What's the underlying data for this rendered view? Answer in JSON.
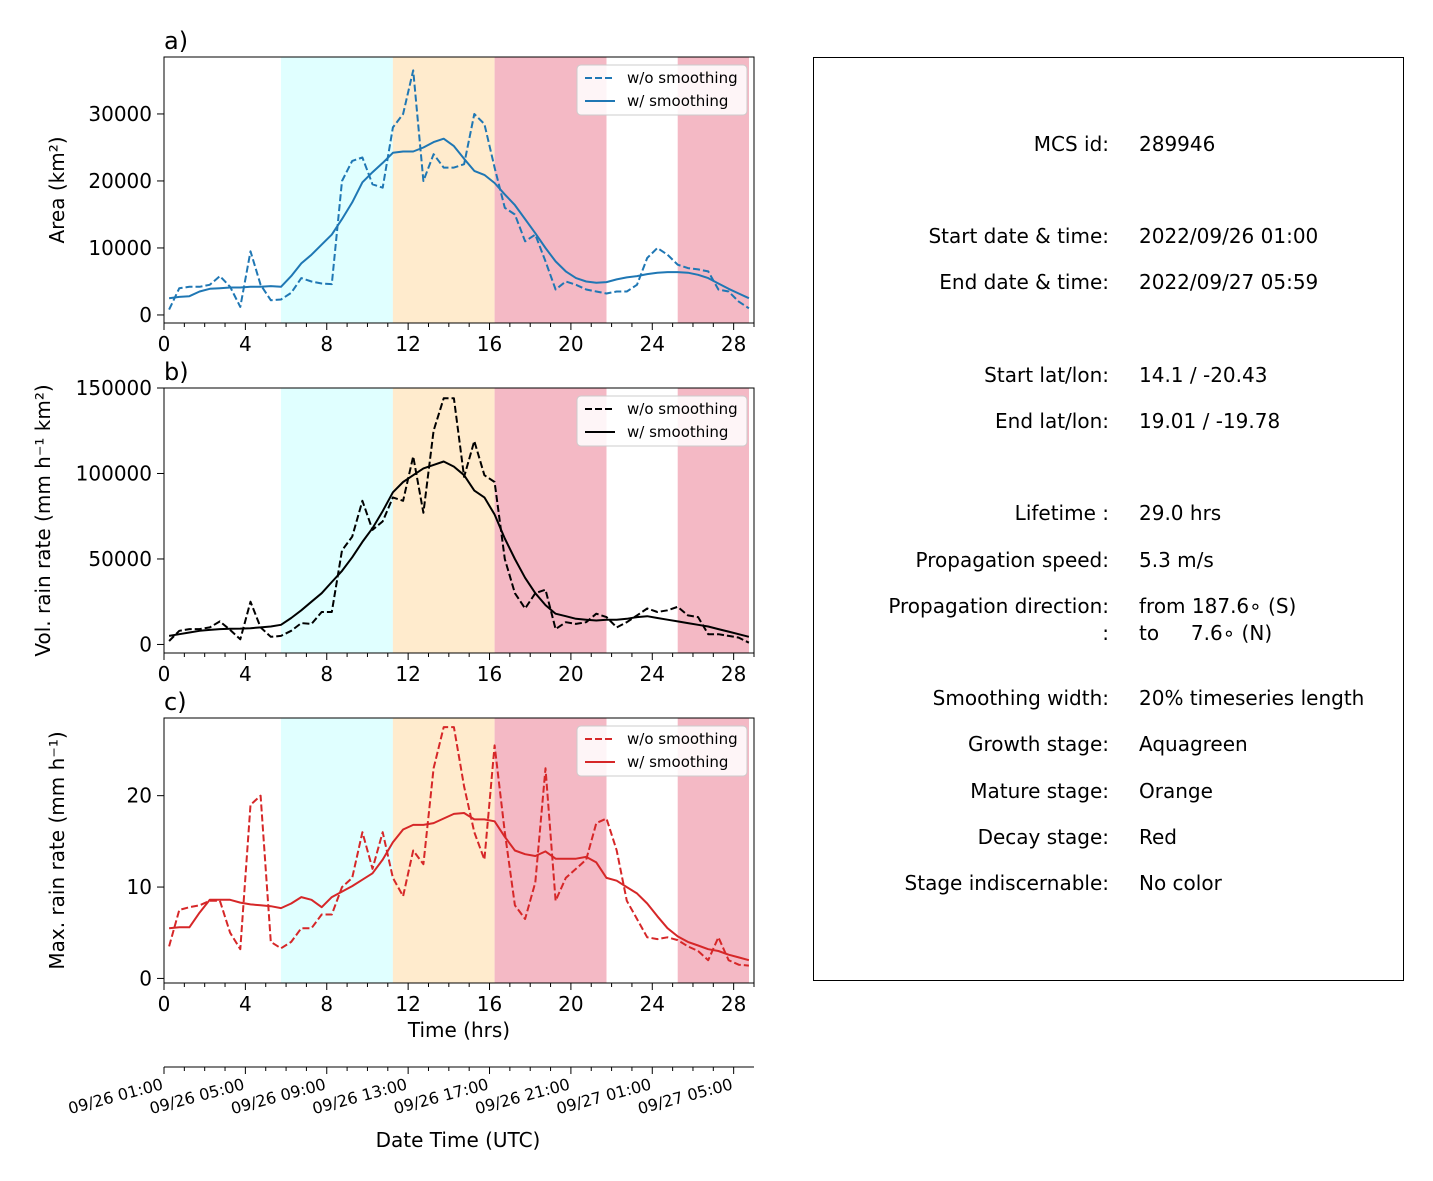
{
  "figure": {
    "xlabel": "Time (hrs)",
    "date_axis_label": "Date Time (UTC)",
    "date_ticks": [
      "09/26 01:00",
      "09/26 05:00",
      "09/26 09:00",
      "09/26 13:00",
      "09/26 17:00",
      "09/26 21:00",
      "09/27 01:00",
      "09/27 05:00"
    ]
  },
  "stage_bands": [
    {
      "stage": "Growth",
      "from": 5.75,
      "to": 11.25,
      "color": "#e0ffff"
    },
    {
      "stage": "Mature",
      "from": 11.25,
      "to": 16.25,
      "color": "#ffebcd"
    },
    {
      "stage": "Decay",
      "from": 16.25,
      "to": 21.75,
      "color": "#f4b9c5"
    },
    {
      "stage": "Decay",
      "from": 25.25,
      "to": 29,
      "color": "#f4b9c5"
    }
  ],
  "chart_data": [
    {
      "type": "line",
      "panel_label": "a)",
      "ylabel": "Area  (km²)",
      "xlim": [
        0,
        29
      ],
      "ylim": [
        -1200,
        38500
      ],
      "xticks": [
        0,
        4,
        8,
        12,
        16,
        20,
        24,
        28
      ],
      "yticks": [
        0,
        10000,
        20000,
        30000
      ],
      "legend": {
        "position": "top-right",
        "entries": [
          "w/o smoothing",
          "w/ smoothing"
        ]
      },
      "color": "#1f77b4",
      "series": [
        {
          "name": "w/o smoothing",
          "style": "dashed",
          "x": [
            0.25,
            0.75,
            1.25,
            1.75,
            2.25,
            2.75,
            3.25,
            3.75,
            4.25,
            4.75,
            5.25,
            5.75,
            6.25,
            6.75,
            7.25,
            7.75,
            8.25,
            8.75,
            9.25,
            9.75,
            10.25,
            10.75,
            11.25,
            11.75,
            12.25,
            12.75,
            13.25,
            13.75,
            14.25,
            14.75,
            15.25,
            15.75,
            16.25,
            16.75,
            17.25,
            17.75,
            18.25,
            18.75,
            19.25,
            19.75,
            20.25,
            20.75,
            21.25,
            21.75,
            22.25,
            22.75,
            23.25,
            23.75,
            24.25,
            24.75,
            25.25,
            25.75,
            26.25,
            26.75,
            27.25,
            27.75,
            28.25,
            28.75
          ],
          "y": [
            800,
            4000,
            4200,
            4200,
            4500,
            5800,
            4200,
            1200,
            9500,
            4500,
            2200,
            2300,
            3300,
            5500,
            5000,
            4700,
            4600,
            20000,
            23000,
            23500,
            19500,
            19000,
            28000,
            30000,
            36500,
            20000,
            24000,
            22000,
            22000,
            22500,
            30000,
            28500,
            22000,
            16000,
            15000,
            11000,
            12000,
            8000,
            3800,
            5000,
            4500,
            3800,
            3500,
            3200,
            3500,
            3500,
            4500,
            8500,
            10000,
            9000,
            7500,
            7000,
            6800,
            6500,
            3800,
            3500,
            2000,
            1000
          ]
        },
        {
          "name": "w/ smoothing",
          "style": "solid",
          "x": [
            0.25,
            0.75,
            1.25,
            1.75,
            2.25,
            2.75,
            3.25,
            3.75,
            4.25,
            4.75,
            5.25,
            5.75,
            6.25,
            6.75,
            7.25,
            7.75,
            8.25,
            8.75,
            9.25,
            9.75,
            10.25,
            10.75,
            11.25,
            11.75,
            12.25,
            12.75,
            13.25,
            13.75,
            14.25,
            14.75,
            15.25,
            15.75,
            16.25,
            16.75,
            17.25,
            17.75,
            18.25,
            18.75,
            19.25,
            19.75,
            20.25,
            20.75,
            21.25,
            21.75,
            22.25,
            22.75,
            23.25,
            23.75,
            24.25,
            24.75,
            25.25,
            25.75,
            26.25,
            26.75,
            27.25,
            27.75,
            28.25,
            28.75
          ],
          "y": [
            2500,
            2700,
            2800,
            3500,
            3900,
            4000,
            4100,
            4100,
            4200,
            4200,
            4300,
            4200,
            5800,
            7700,
            9000,
            10500,
            12000,
            14300,
            16800,
            19800,
            21300,
            22700,
            24200,
            24400,
            24400,
            25000,
            25800,
            26300,
            25200,
            23300,
            21500,
            20900,
            19700,
            18000,
            16400,
            14300,
            12200,
            10000,
            8000,
            6500,
            5500,
            5000,
            4800,
            4900,
            5300,
            5600,
            5800,
            6100,
            6300,
            6400,
            6400,
            6300,
            6000,
            5500,
            4700,
            3900,
            3200,
            2500
          ]
        }
      ]
    },
    {
      "type": "line",
      "panel_label": "b)",
      "ylabel": "Vol. rain rate (mm h⁻¹ km²)",
      "xlim": [
        0,
        29
      ],
      "ylim": [
        -5000,
        150000
      ],
      "xticks": [
        0,
        4,
        8,
        12,
        16,
        20,
        24,
        28
      ],
      "yticks": [
        0,
        50000,
        100000,
        150000
      ],
      "legend": {
        "position": "top-right",
        "entries": [
          "w/o smoothing",
          "w/ smoothing"
        ]
      },
      "color": "#000000",
      "series": [
        {
          "name": "w/o smoothing",
          "style": "dashed",
          "x": [
            0.25,
            0.75,
            1.25,
            1.75,
            2.25,
            2.75,
            3.25,
            3.75,
            4.25,
            4.75,
            5.25,
            5.75,
            6.25,
            6.75,
            7.25,
            7.75,
            8.25,
            8.75,
            9.25,
            9.75,
            10.25,
            10.75,
            11.25,
            11.75,
            12.25,
            12.75,
            13.25,
            13.75,
            14.25,
            14.75,
            15.25,
            15.75,
            16.25,
            16.75,
            17.25,
            17.75,
            18.25,
            18.75,
            19.25,
            19.75,
            20.25,
            20.75,
            21.25,
            21.75,
            22.25,
            22.75,
            23.25,
            23.75,
            24.25,
            24.75,
            25.25,
            25.75,
            26.25,
            26.75,
            27.25,
            27.75,
            28.25,
            28.75
          ],
          "y": [
            2000,
            8000,
            9000,
            9000,
            10000,
            13500,
            8500,
            3000,
            25000,
            10000,
            4500,
            5000,
            8000,
            12500,
            12000,
            19000,
            19000,
            55000,
            63000,
            84000,
            67000,
            72000,
            86000,
            84000,
            110000,
            77000,
            125000,
            144000,
            144000,
            98000,
            119000,
            99000,
            95000,
            50000,
            30000,
            21000,
            30000,
            32000,
            9000,
            13000,
            12000,
            13000,
            18000,
            16000,
            10000,
            13000,
            17000,
            21000,
            19000,
            20000,
            22000,
            17000,
            16000,
            6000,
            6000,
            5000,
            4000,
            1000
          ]
        },
        {
          "name": "w/ smoothing",
          "style": "solid",
          "x": [
            0.25,
            0.75,
            1.25,
            1.75,
            2.25,
            2.75,
            3.25,
            3.75,
            4.25,
            4.75,
            5.25,
            5.75,
            6.25,
            6.75,
            7.25,
            7.75,
            8.25,
            8.75,
            9.25,
            9.75,
            10.25,
            10.75,
            11.25,
            11.75,
            12.25,
            12.75,
            13.25,
            13.75,
            14.25,
            14.75,
            15.25,
            15.75,
            16.25,
            16.75,
            17.25,
            17.75,
            18.25,
            18.75,
            19.25,
            19.75,
            20.25,
            20.75,
            21.25,
            21.75,
            22.25,
            22.75,
            23.25,
            23.75,
            24.25,
            24.75,
            25.25,
            25.75,
            26.25,
            26.75,
            27.25,
            27.75,
            28.25,
            28.75
          ],
          "y": [
            5000,
            6000,
            7000,
            8000,
            8500,
            9000,
            9200,
            9300,
            9500,
            10000,
            10500,
            11500,
            15500,
            20000,
            25000,
            30000,
            36500,
            43000,
            51000,
            60000,
            68000,
            78000,
            89000,
            95000,
            99000,
            103000,
            105000,
            107000,
            104000,
            99000,
            90000,
            86000,
            76000,
            62000,
            50000,
            39000,
            30000,
            23000,
            18000,
            16500,
            15000,
            14500,
            14000,
            14500,
            14500,
            15000,
            16000,
            16500,
            15500,
            14500,
            13500,
            12500,
            11500,
            10500,
            9000,
            7500,
            6000,
            4500
          ]
        }
      ]
    },
    {
      "type": "line",
      "panel_label": "c)",
      "ylabel": "Max. rain rate  (mm h⁻¹)",
      "xlim": [
        0,
        29
      ],
      "ylim": [
        -0.5,
        28.5
      ],
      "xticks": [
        0,
        4,
        8,
        12,
        16,
        20,
        24,
        28
      ],
      "yticks": [
        0,
        10,
        20
      ],
      "legend": {
        "position": "top-right",
        "entries": [
          "w/o smoothing",
          "w/ smoothing"
        ]
      },
      "color": "#d62728",
      "series": [
        {
          "name": "w/o smoothing",
          "style": "dashed",
          "x": [
            0.25,
            0.75,
            1.25,
            1.75,
            2.25,
            2.75,
            3.25,
            3.75,
            4.25,
            4.75,
            5.25,
            5.75,
            6.25,
            6.75,
            7.25,
            7.75,
            8.25,
            8.75,
            9.25,
            9.75,
            10.25,
            10.75,
            11.25,
            11.75,
            12.25,
            12.75,
            13.25,
            13.75,
            14.25,
            14.75,
            15.25,
            15.75,
            16.25,
            16.75,
            17.25,
            17.75,
            18.25,
            18.75,
            19.25,
            19.75,
            20.25,
            20.75,
            21.25,
            21.75,
            22.25,
            22.75,
            23.25,
            23.75,
            24.25,
            24.75,
            25.25,
            25.75,
            26.25,
            26.75,
            27.25,
            27.75,
            28.25,
            28.75
          ],
          "y": [
            3.5,
            7.5,
            7.8,
            8,
            8.5,
            8.5,
            5,
            3.2,
            19,
            20,
            4,
            3.3,
            4,
            5.5,
            5.5,
            7,
            7,
            10,
            11,
            16,
            12,
            16,
            11,
            9,
            14,
            12.5,
            23,
            27.5,
            27.5,
            21,
            16,
            13,
            25.5,
            16,
            8,
            6.5,
            10.5,
            23,
            8.5,
            11,
            12,
            13,
            17,
            17.5,
            14,
            8.5,
            6.5,
            4.5,
            4.3,
            4.5,
            4.2,
            3.5,
            3,
            2,
            4.5,
            2,
            1.5,
            1.4
          ]
        },
        {
          "name": "w/ smoothing",
          "style": "solid",
          "x": [
            0.25,
            0.75,
            1.25,
            1.75,
            2.25,
            2.75,
            3.25,
            3.75,
            4.25,
            4.75,
            5.25,
            5.75,
            6.25,
            6.75,
            7.25,
            7.75,
            8.25,
            8.75,
            9.25,
            9.75,
            10.25,
            10.75,
            11.25,
            11.75,
            12.25,
            12.75,
            13.25,
            13.75,
            14.25,
            14.75,
            15.25,
            15.75,
            16.25,
            16.75,
            17.25,
            17.75,
            18.25,
            18.75,
            19.25,
            19.75,
            20.25,
            20.75,
            21.25,
            21.75,
            22.25,
            22.75,
            23.25,
            23.75,
            24.25,
            24.75,
            25.25,
            25.75,
            26.25,
            26.75,
            27.25,
            27.75,
            28.25,
            28.75
          ],
          "y": [
            5.5,
            5.6,
            5.6,
            7.2,
            8.6,
            8.6,
            8.6,
            8.3,
            8.1,
            8,
            7.9,
            7.7,
            8.2,
            8.9,
            8.6,
            7.8,
            8.9,
            9.5,
            10.1,
            10.8,
            11.5,
            13,
            14.9,
            16.3,
            16.8,
            16.8,
            17,
            17.5,
            18,
            18.1,
            17.4,
            17.4,
            17.2,
            15.5,
            14,
            13.6,
            13.4,
            13.9,
            13.1,
            13.1,
            13.1,
            13.3,
            12.7,
            11,
            10.7,
            10,
            9.3,
            8.2,
            6.8,
            5.5,
            4.6,
            4,
            3.6,
            3.2,
            3,
            2.6,
            2.3,
            2
          ]
        }
      ]
    }
  ],
  "info": [
    {
      "key": "MCS id:",
      "value": "289946"
    },
    {
      "key": "Start date & time:",
      "value": "2022/09/26 01:00"
    },
    {
      "key": "End date & time:",
      "value": "2022/09/27 05:59"
    },
    {
      "key": "Start lat/lon:",
      "value": "14.1 / -20.43"
    },
    {
      "key": "End lat/lon:",
      "value": "19.01 / -19.78"
    },
    {
      "key": "Lifetime :",
      "value": "29.0 hrs"
    },
    {
      "key": "Propagation speed:",
      "value": "5.3 m/s"
    },
    {
      "key": "Propagation direction:",
      "value": "from 187.6∘ (S)"
    },
    {
      "key": ":",
      "value": "to     7.6∘ (N)"
    },
    {
      "key": "Smoothing width:",
      "value": "20% timeseries length"
    },
    {
      "key": "Growth stage:",
      "value": "Aquagreen"
    },
    {
      "key": "Mature stage:",
      "value": "Orange"
    },
    {
      "key": "Decay stage:",
      "value": "Red"
    },
    {
      "key": "Stage indiscernable:",
      "value": "No color"
    }
  ]
}
